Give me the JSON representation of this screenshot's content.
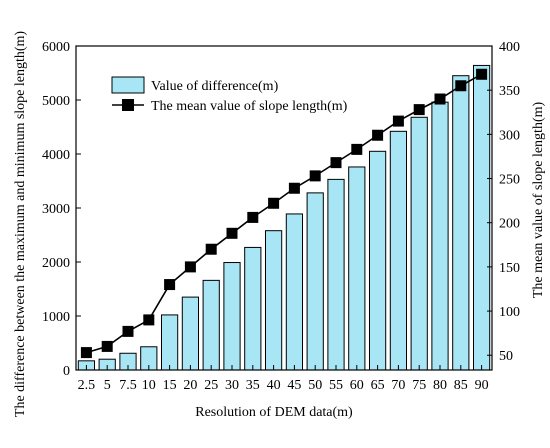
{
  "chart_data": {
    "type": "bar",
    "categories": [
      "2.5",
      "5",
      "7.5",
      "10",
      "15",
      "20",
      "25",
      "30",
      "35",
      "40",
      "45",
      "50",
      "55",
      "60",
      "65",
      "70",
      "75",
      "80",
      "85",
      "90"
    ],
    "series": [
      {
        "name": "Value of difference(m)",
        "kind": "bar",
        "axis": "left",
        "color": "#a8e6f5",
        "values": [
          170,
          200,
          310,
          430,
          1020,
          1350,
          1660,
          1990,
          2270,
          2580,
          2890,
          3280,
          3530,
          3760,
          4050,
          4420,
          4680,
          4960,
          5450,
          5640
        ]
      },
      {
        "name": "The mean value of slope length(m)",
        "kind": "line",
        "axis": "right",
        "color": "#000000",
        "marker": "square",
        "values": [
          53,
          60,
          77,
          90,
          130,
          150,
          170,
          188,
          206,
          222,
          239,
          253,
          268,
          283,
          299,
          315,
          328,
          340,
          355,
          368
        ]
      }
    ],
    "xlabel": "Resolution of DEM data(m)",
    "ylabel_left": "The difference between the maximum and minimum slope length(m)",
    "ylabel_right": "The mean value of slope length(m)",
    "ylim_left": [
      0,
      6000
    ],
    "yticks_left": [
      0,
      1000,
      2000,
      3000,
      4000,
      5000,
      6000
    ],
    "ylim_right": [
      33.3,
      400
    ],
    "yticks_right": [
      50,
      100,
      150,
      200,
      250,
      300,
      350,
      400
    ],
    "legend_position": "top-left",
    "grid": false
  }
}
